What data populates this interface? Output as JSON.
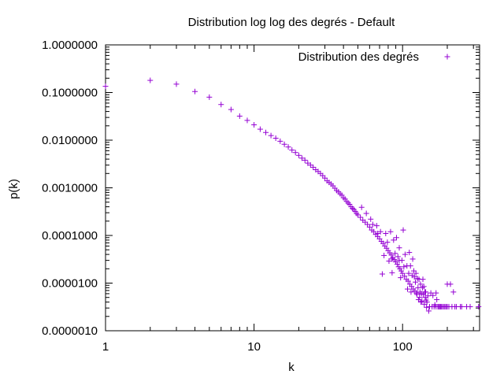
{
  "chart_data": {
    "type": "scatter",
    "title": "Distribution log log des degrés - Default",
    "xlabel": "k",
    "ylabel": "p(k)",
    "xscale": "log",
    "yscale": "log",
    "xlim": [
      1,
      330
    ],
    "ylim": [
      1e-06,
      1
    ],
    "x_ticks": [
      {
        "value": 1,
        "label": "1"
      },
      {
        "value": 10,
        "label": "10"
      },
      {
        "value": 100,
        "label": "100"
      }
    ],
    "y_ticks": [
      {
        "value": 1,
        "label": "1.0000000"
      },
      {
        "value": 0.1,
        "label": "0.1000000"
      },
      {
        "value": 0.01,
        "label": "0.0100000"
      },
      {
        "value": 0.001,
        "label": "0.0010000"
      },
      {
        "value": 0.0001,
        "label": "0.0001000"
      },
      {
        "value": 1e-05,
        "label": "0.0000100"
      },
      {
        "value": 1e-06,
        "label": "0.0000010"
      }
    ],
    "grid": false,
    "legend_position": "top-right",
    "marker": "+",
    "color": "#9400d3",
    "series": [
      {
        "name": "Distribution des degrés",
        "points": [
          [
            1,
            0.135
          ],
          [
            2,
            0.18
          ],
          [
            3,
            0.15
          ],
          [
            4,
            0.105
          ],
          [
            5,
            0.08
          ],
          [
            6,
            0.056
          ],
          [
            7,
            0.044
          ],
          [
            8,
            0.032
          ],
          [
            9,
            0.026
          ],
          [
            10,
            0.021
          ],
          [
            11,
            0.017
          ],
          [
            12,
            0.0145
          ],
          [
            13,
            0.0125
          ],
          [
            14,
            0.011
          ],
          [
            15,
            0.0095
          ],
          [
            16,
            0.0082
          ],
          [
            17,
            0.0072
          ],
          [
            18,
            0.0062
          ],
          [
            19,
            0.0055
          ],
          [
            20,
            0.0048
          ],
          [
            21,
            0.0042
          ],
          [
            22,
            0.0038
          ],
          [
            23,
            0.0033
          ],
          [
            24,
            0.003
          ],
          [
            25,
            0.0027
          ],
          [
            26,
            0.0024
          ],
          [
            27,
            0.0022
          ],
          [
            28,
            0.002
          ],
          [
            29,
            0.0018
          ],
          [
            30,
            0.0016
          ],
          [
            31,
            0.0014
          ],
          [
            32,
            0.0013
          ],
          [
            33,
            0.0012
          ],
          [
            34,
            0.0011
          ],
          [
            35,
            0.00098
          ],
          [
            36,
            0.00088
          ],
          [
            37,
            0.00082
          ],
          [
            38,
            0.00075
          ],
          [
            39,
            0.0007
          ],
          [
            40,
            0.00062
          ],
          [
            41,
            0.00058
          ],
          [
            42,
            0.00052
          ],
          [
            43,
            0.00048
          ],
          [
            44,
            0.00045
          ],
          [
            45,
            0.0004
          ],
          [
            46,
            0.00037
          ],
          [
            47,
            0.00035
          ],
          [
            48,
            0.00032
          ],
          [
            49,
            0.00029
          ],
          [
            50,
            0.00027
          ],
          [
            52,
            0.00024
          ],
          [
            54,
            0.00021
          ],
          [
            56,
            0.00019
          ],
          [
            58,
            0.00017
          ],
          [
            60,
            0.00015
          ],
          [
            62,
            0.00013
          ],
          [
            64,
            0.00012
          ],
          [
            66,
            0.000105
          ],
          [
            68,
            9.5e-05
          ],
          [
            70,
            8.5e-05
          ],
          [
            72,
            7.5e-05
          ],
          [
            74,
            6.8e-05
          ],
          [
            76,
            6e-05
          ],
          [
            78,
            5.4e-05
          ],
          [
            80,
            4.8e-05
          ],
          [
            82,
            4.3e-05
          ],
          [
            84,
            3.9e-05
          ],
          [
            86,
            3.4e-05
          ],
          [
            88,
            3.1e-05
          ],
          [
            90,
            2.8e-05
          ],
          [
            92,
            2.5e-05
          ],
          [
            94,
            2.2e-05
          ],
          [
            96,
            2e-05
          ],
          [
            98,
            1.8e-05
          ],
          [
            100,
            1.6e-05
          ],
          [
            103,
            1.4e-05
          ],
          [
            106,
            1.2e-05
          ],
          [
            109,
            1.1e-05
          ],
          [
            112,
            9.5e-06
          ],
          [
            115,
            8.5e-06
          ],
          [
            118,
            7.5e-06
          ],
          [
            121,
            6.8e-06
          ],
          [
            125,
            5.8e-06
          ],
          [
            130,
            5e-06
          ],
          [
            135,
            4.2e-06
          ],
          [
            140,
            3.6e-06
          ],
          [
            145,
            3.1e-06
          ],
          [
            150,
            2.6e-06
          ],
          [
            53,
            0.00039
          ],
          [
            57,
            0.00029
          ],
          [
            61,
            0.00022
          ],
          [
            63,
            0.00017
          ],
          [
            67,
            0.00016
          ],
          [
            71,
            0.00012
          ],
          [
            73,
            1.55e-05
          ],
          [
            77,
            0.00011
          ],
          [
            79,
            7.2e-05
          ],
          [
            81,
            2.9e-05
          ],
          [
            83,
            0.00012
          ],
          [
            85,
            1.65e-05
          ],
          [
            87,
            8e-05
          ],
          [
            89,
            4.2e-05
          ],
          [
            91,
            9e-05
          ],
          [
            93,
            3.6e-05
          ],
          [
            95,
            3e-05
          ],
          [
            97,
            1.3e-05
          ],
          [
            99,
            3e-05
          ],
          [
            101,
            0.00013
          ],
          [
            102,
            2.2e-05
          ],
          [
            104,
            4e-05
          ],
          [
            107,
            2.3e-05
          ],
          [
            108,
            7.5e-06
          ],
          [
            110,
            1.6e-05
          ],
          [
            111,
            4.4e-05
          ],
          [
            113,
            2.3e-05
          ],
          [
            114,
            6.5e-06
          ],
          [
            116,
            1.45e-05
          ],
          [
            117,
            3.2e-05
          ],
          [
            119,
            1.8e-05
          ],
          [
            120,
            1.35e-05
          ],
          [
            122,
            1.05e-05
          ],
          [
            123,
            1.6e-05
          ],
          [
            124,
            6.2e-06
          ],
          [
            126,
            1.25e-05
          ],
          [
            127,
            8e-06
          ],
          [
            128,
            4.5e-06
          ],
          [
            129,
            1.2e-05
          ],
          [
            131,
            6.5e-06
          ],
          [
            132,
            9.5e-06
          ],
          [
            133,
            4e-06
          ],
          [
            134,
            6e-06
          ],
          [
            136,
            8e-06
          ],
          [
            137,
            1.2e-05
          ],
          [
            138,
            5.8e-06
          ],
          [
            139,
            8.5e-06
          ],
          [
            141,
            6.5e-06
          ],
          [
            142,
            5e-06
          ],
          [
            143,
            6.5e-06
          ],
          [
            144,
            4.4e-06
          ],
          [
            146,
            4e-06
          ],
          [
            148,
            5.4e-06
          ],
          [
            152,
            3.2e-06
          ],
          [
            155,
            6.2e-06
          ],
          [
            158,
            3.2e-06
          ],
          [
            160,
            5.5e-06
          ],
          [
            163,
            3.2e-06
          ],
          [
            165,
            3.5e-06
          ],
          [
            168,
            3.2e-06
          ],
          [
            170,
            4.5e-06
          ],
          [
            173,
            3.2e-06
          ],
          [
            175,
            3.2e-06
          ],
          [
            178,
            3.2e-06
          ],
          [
            180,
            3.2e-06
          ],
          [
            183,
            3.2e-06
          ],
          [
            186,
            3.2e-06
          ],
          [
            190,
            3.2e-06
          ],
          [
            193,
            3.2e-06
          ],
          [
            197,
            3.2e-06
          ],
          [
            200,
            3.2e-06
          ],
          [
            205,
            3.2e-06
          ],
          [
            210,
            9.5e-06
          ],
          [
            215,
            3.2e-06
          ],
          [
            220,
            6.5e-06
          ],
          [
            225,
            3.2e-06
          ],
          [
            230,
            3.2e-06
          ],
          [
            245,
            3.2e-06
          ],
          [
            250,
            3.2e-06
          ],
          [
            270,
            3.2e-06
          ],
          [
            285,
            3.2e-06
          ],
          [
            325,
            3.2e-06
          ],
          [
            200,
            9.5e-06
          ],
          [
            168,
            6.2e-06
          ],
          [
            95,
            5.5e-05
          ],
          [
            85,
            3.2e-05
          ],
          [
            75,
            3.8e-05
          ],
          [
            68,
            0.00011
          ]
        ]
      }
    ]
  }
}
